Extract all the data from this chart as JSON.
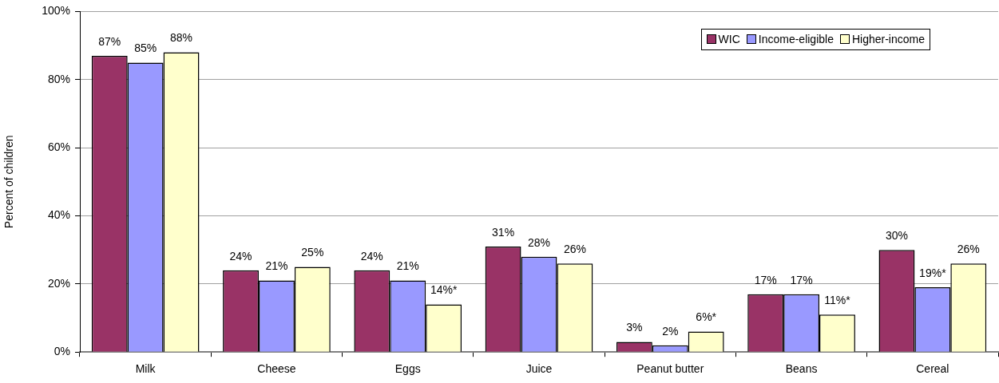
{
  "chart_data": {
    "type": "bar",
    "ylabel": "Percent of children",
    "categories": [
      "Milk",
      "Cheese",
      "Eggs",
      "Juice",
      "Peanut butter",
      "Beans",
      "Cereal"
    ],
    "series": [
      {
        "name": "WIC",
        "color": "#993366",
        "values": [
          87,
          24,
          24,
          31,
          3,
          17,
          30
        ],
        "value_labels": [
          "87%",
          "24%",
          "24%",
          "31%",
          "3%",
          "17%",
          "30%"
        ]
      },
      {
        "name": "Income-eligible",
        "color": "#9999ff",
        "values": [
          85,
          21,
          21,
          28,
          2,
          17,
          19
        ],
        "value_labels": [
          "85%",
          "21%",
          "21%",
          "28%",
          "2%",
          "17%",
          "19%*"
        ]
      },
      {
        "name": "Higher-income",
        "color": "#ffffcc",
        "values": [
          88,
          25,
          14,
          26,
          6,
          11,
          26
        ],
        "value_labels": [
          "88%",
          "25%",
          "14%*",
          "26%",
          "6%*",
          "11%*",
          "26%"
        ]
      }
    ],
    "ylim": [
      0,
      100
    ],
    "yticks": [
      {
        "value": 0,
        "label": "0%"
      },
      {
        "value": 20,
        "label": "20%"
      },
      {
        "value": 40,
        "label": "40%"
      },
      {
        "value": 60,
        "label": "60%"
      },
      {
        "value": 80,
        "label": "80%"
      },
      {
        "value": 100,
        "label": "100%"
      }
    ],
    "grid": "y",
    "legend": "top right"
  }
}
